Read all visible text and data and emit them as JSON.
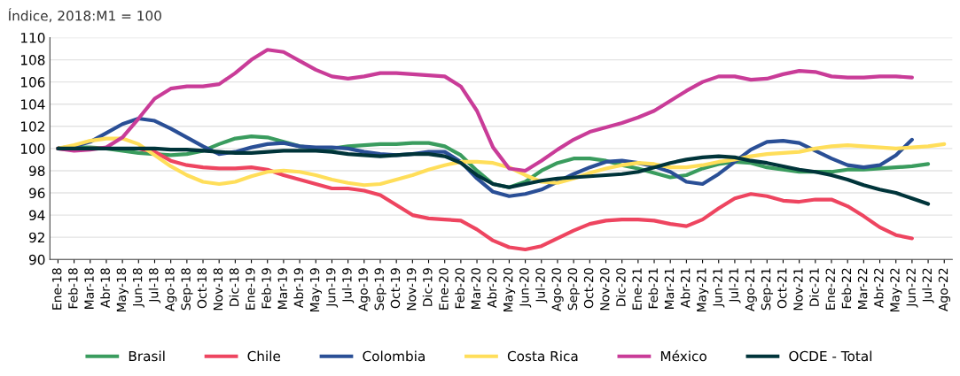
{
  "chart_data": {
    "type": "line",
    "title": "Índice, 2018:M1 = 100",
    "categories": [
      "Ene-18",
      "Feb-18",
      "Mar-18",
      "Abr-18",
      "May-18",
      "Jun-18",
      "Jul-18",
      "Ago-18",
      "Sep-18",
      "Oct-18",
      "Nov-18",
      "Dic-18",
      "Ene-19",
      "Feb-19",
      "Mar-19",
      "Abr-19",
      "May-19",
      "Jun-19",
      "Jul-19",
      "Ago-19",
      "Sep-19",
      "Oct-19",
      "Nov-19",
      "Dic-19",
      "Ene-20",
      "Feb-20",
      "Mar-20",
      "Abr-20",
      "May-20",
      "Jun-20",
      "Jul-20",
      "Ago-20",
      "Sep-20",
      "Oct-20",
      "Nov-20",
      "Dic-20",
      "Ene-21",
      "Feb-21",
      "Mar-21",
      "Abr-21",
      "May-21",
      "Jun-21",
      "Jul-21",
      "Ago-21",
      "Sep-21",
      "Oct-21",
      "Nov-21",
      "Dic-21",
      "Ene-22",
      "Feb-22",
      "Mar-22",
      "Abr-22",
      "May-22",
      "Jun-22",
      "Jul-22",
      "Ago-22"
    ],
    "ylim": [
      90,
      110
    ],
    "yticks": [
      90,
      92,
      94,
      96,
      98,
      100,
      102,
      104,
      106,
      108,
      110
    ],
    "grid": "y",
    "legend": "bottom",
    "marker": "none",
    "line_style": "solid",
    "series": [
      {
        "name": "Brasil",
        "color": "#3a9c5e",
        "values": [
          100,
          100.1,
          100.1,
          100,
          99.8,
          99.6,
          99.5,
          99.4,
          99.5,
          99.8,
          100.4,
          100.9,
          101.1,
          101,
          100.6,
          100.2,
          100,
          100,
          100.2,
          100.3,
          100.4,
          100.4,
          100.5,
          100.5,
          100.2,
          99.4,
          98,
          96.8,
          96.5,
          97,
          98,
          98.7,
          99.1,
          99.1,
          98.9,
          98.5,
          98.2,
          97.8,
          97.4,
          97.6,
          98.2,
          98.6,
          98.8,
          98.7,
          98.3,
          98.1,
          97.9,
          97.9,
          97.9,
          98.1,
          98.1,
          98.2,
          98.3,
          98.4,
          98.6,
          null
        ]
      },
      {
        "name": "Chile",
        "color": "#ee4560",
        "values": [
          100,
          99.9,
          100,
          100,
          null,
          100,
          99.7,
          98.9,
          98.5,
          98.3,
          98.2,
          98.2,
          98.3,
          98.1,
          97.6,
          97.2,
          96.8,
          96.4,
          96.4,
          96.2,
          95.8,
          94.9,
          94.0,
          93.7,
          93.6,
          93.5,
          92.7,
          91.7,
          91.1,
          90.9,
          91.2,
          91.9,
          92.6,
          93.2,
          93.5,
          93.6,
          93.6,
          93.5,
          93.2,
          93.0,
          93.6,
          94.6,
          95.5,
          95.9,
          95.7,
          95.3,
          95.2,
          95.4,
          95.4,
          94.8,
          93.9,
          92.9,
          92.2,
          91.9,
          null,
          null
        ]
      },
      {
        "name": "Colombia",
        "color": "#2a4f96",
        "values": [
          100,
          100.2,
          100.6,
          101.4,
          102.2,
          102.7,
          102.5,
          101.8,
          101,
          100.2,
          99.5,
          99.7,
          100.1,
          100.4,
          100.5,
          100.2,
          100.1,
          100.1,
          100,
          99.7,
          99.5,
          99.4,
          99.5,
          99.7,
          99.7,
          98.8,
          97.3,
          96.1,
          95.7,
          95.9,
          96.3,
          97,
          97.7,
          98.3,
          98.8,
          98.9,
          98.7,
          98.4,
          97.9,
          97.0,
          96.8,
          97.7,
          98.8,
          99.9,
          100.6,
          100.7,
          100.5,
          99.8,
          99.1,
          98.5,
          98.3,
          98.5,
          99.4,
          100.8,
          null,
          null
        ]
      },
      {
        "name": "Costa Rica",
        "color": "#ffde5a",
        "values": [
          100,
          100.3,
          100.7,
          100.9,
          100.9,
          100.4,
          99.4,
          98.4,
          97.6,
          97.0,
          96.8,
          97,
          97.5,
          97.9,
          98,
          97.9,
          97.6,
          97.2,
          96.9,
          96.7,
          96.8,
          97.2,
          97.6,
          98.1,
          98.5,
          98.8,
          98.8,
          98.7,
          98.3,
          97.6,
          97,
          96.9,
          97.3,
          97.8,
          98.2,
          98.5,
          98.7,
          98.6,
          98.3,
          98.3,
          98.5,
          98.8,
          99.0,
          99.3,
          99.5,
          99.6,
          99.7,
          100,
          100.2,
          100.3,
          100.2,
          100.1,
          100,
          100.1,
          100.2,
          100.4
        ]
      },
      {
        "name": "México",
        "color": "#c93c98",
        "values": [
          100,
          99.8,
          99.9,
          100.1,
          101,
          102.7,
          104.5,
          105.4,
          105.6,
          105.6,
          105.8,
          106.8,
          108,
          108.9,
          108.7,
          107.9,
          107.1,
          106.5,
          106.3,
          106.5,
          106.8,
          106.8,
          106.7,
          106.6,
          106.5,
          105.6,
          103.4,
          100.1,
          98.2,
          98.0,
          98.9,
          99.9,
          100.8,
          101.5,
          101.9,
          102.3,
          102.8,
          103.4,
          104.3,
          105.2,
          106.0,
          106.5,
          106.5,
          106.2,
          106.3,
          106.7,
          107.0,
          106.9,
          106.5,
          106.4,
          106.4,
          106.5,
          106.5,
          106.4,
          null,
          null
        ]
      },
      {
        "name": "OCDE - Total",
        "color": "#00343a",
        "values": [
          100,
          100,
          100,
          100,
          100,
          100,
          100,
          99.9,
          99.9,
          99.8,
          99.7,
          99.6,
          99.6,
          99.7,
          99.8,
          99.8,
          99.8,
          99.7,
          99.5,
          99.4,
          99.3,
          99.4,
          99.5,
          99.5,
          99.3,
          98.7,
          97.6,
          96.8,
          96.5,
          96.8,
          97.1,
          97.3,
          97.4,
          97.5,
          97.6,
          97.7,
          97.9,
          98.3,
          98.7,
          99.0,
          99.2,
          99.3,
          99.2,
          98.9,
          98.7,
          98.4,
          98.1,
          97.9,
          97.6,
          97.2,
          96.7,
          96.3,
          96.0,
          95.5,
          95.0,
          null
        ]
      }
    ]
  }
}
